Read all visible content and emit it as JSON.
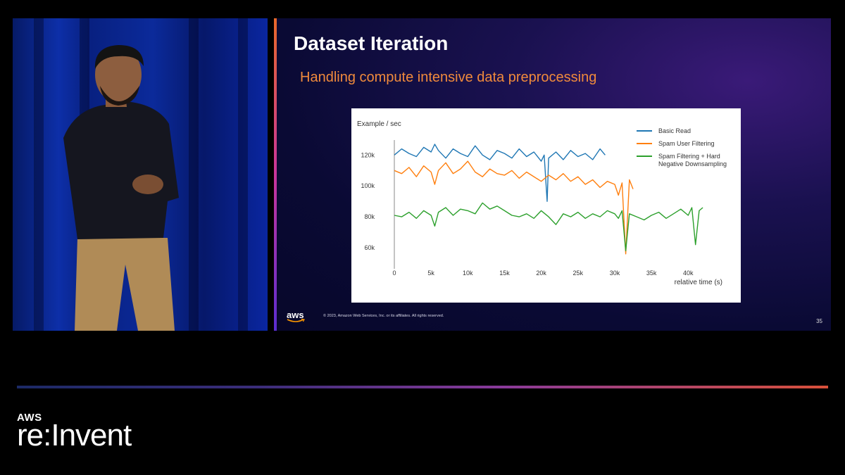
{
  "slide": {
    "title": "Dataset Iteration",
    "subtitle": "Handling compute intensive data preprocessing",
    "footer_logo": "aws",
    "copyright": "© 2023, Amazon Web Services, Inc. or its affiliates. All rights reserved.",
    "page_number": "35"
  },
  "branding": {
    "aws": "AWS",
    "event": "re:Invent"
  },
  "colors": {
    "accent_orange": "#f08a3c",
    "series_blue": "#1f77b4",
    "series_orange": "#ff7f0e",
    "series_green": "#2ca02c"
  },
  "chart_data": {
    "type": "line",
    "ylabel": "Example / sec",
    "xlabel": "relative time (s)",
    "xlim": [
      0,
      44000
    ],
    "ylim": [
      50000,
      132000
    ],
    "x_ticks": [
      0,
      5000,
      10000,
      15000,
      20000,
      25000,
      30000,
      35000,
      40000
    ],
    "x_tick_labels": [
      "0",
      "5k",
      "10k",
      "15k",
      "20k",
      "25k",
      "30k",
      "35k",
      "40k"
    ],
    "y_ticks": [
      60000,
      80000,
      100000,
      120000
    ],
    "y_tick_labels": [
      "60k",
      "80k",
      "100k",
      "120k"
    ],
    "series": [
      {
        "name": "Basic Read",
        "color": "#1f77b4",
        "x": [
          0,
          1000,
          2000,
          3000,
          4000,
          5000,
          5500,
          6000,
          7000,
          8000,
          9000,
          10000,
          11000,
          12000,
          13000,
          14000,
          15000,
          16000,
          17000,
          18000,
          19000,
          20000,
          20400,
          20800,
          21000,
          22000,
          23000,
          24000,
          25000,
          26000,
          27000,
          28000,
          28700
        ],
        "y": [
          120000,
          124000,
          121000,
          119000,
          125000,
          122000,
          127000,
          123000,
          118000,
          124000,
          121000,
          119000,
          126000,
          120000,
          117000,
          123000,
          121000,
          118000,
          124000,
          119000,
          122000,
          116000,
          120000,
          90000,
          118000,
          122000,
          117000,
          123000,
          119000,
          121000,
          117000,
          124000,
          120000
        ]
      },
      {
        "name": "Spam User Filtering",
        "color": "#ff7f0e",
        "x": [
          0,
          1000,
          2000,
          3000,
          4000,
          5000,
          5500,
          6000,
          7000,
          8000,
          9000,
          10000,
          11000,
          12000,
          13000,
          14000,
          15000,
          16000,
          17000,
          18000,
          19000,
          20000,
          21000,
          22000,
          23000,
          24000,
          25000,
          26000,
          27000,
          28000,
          29000,
          30000,
          30500,
          31000,
          31500,
          32000,
          32500
        ],
        "y": [
          110000,
          108000,
          112000,
          106000,
          113000,
          109000,
          101000,
          110000,
          115000,
          108000,
          111000,
          116000,
          109000,
          106000,
          111000,
          108000,
          107000,
          110000,
          105000,
          109000,
          106000,
          103000,
          107000,
          104000,
          108000,
          103000,
          106000,
          101000,
          104000,
          99000,
          103000,
          101000,
          94000,
          102000,
          56000,
          104000,
          98000
        ]
      },
      {
        "name": "Spam Filtering + Hard Negative Downsampling",
        "color": "#2ca02c",
        "x": [
          0,
          1000,
          2000,
          3000,
          4000,
          5000,
          5500,
          6000,
          7000,
          8000,
          9000,
          10000,
          11000,
          12000,
          13000,
          14000,
          15000,
          16000,
          17000,
          18000,
          19000,
          20000,
          21000,
          22000,
          23000,
          24000,
          25000,
          26000,
          27000,
          28000,
          29000,
          30000,
          30500,
          31000,
          31500,
          32000,
          33000,
          34000,
          35000,
          36000,
          37000,
          38000,
          39000,
          40000,
          40500,
          41000,
          41500,
          42000
        ],
        "y": [
          81000,
          80000,
          83000,
          79000,
          84000,
          81000,
          74000,
          83000,
          86000,
          81000,
          85000,
          84000,
          82000,
          89000,
          85000,
          87000,
          84000,
          81000,
          80000,
          82000,
          79000,
          84000,
          80000,
          75000,
          82000,
          80000,
          83000,
          79000,
          82000,
          80000,
          84000,
          82000,
          79000,
          84000,
          58000,
          82000,
          80000,
          78000,
          81000,
          83000,
          79000,
          82000,
          85000,
          81000,
          86000,
          62000,
          84000,
          86000
        ]
      }
    ]
  }
}
